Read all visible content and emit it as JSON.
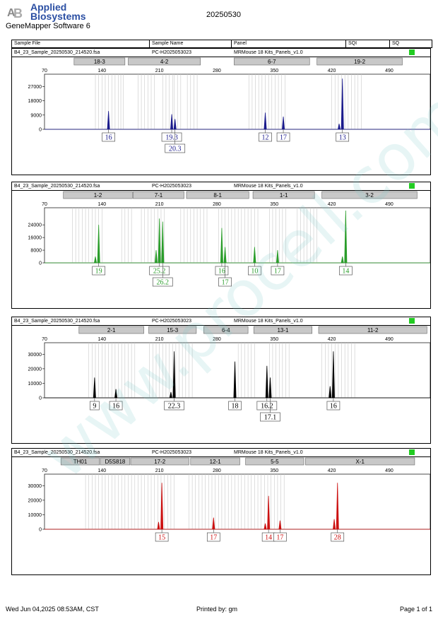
{
  "header": {
    "logo_line1": "Applied",
    "logo_line2": "Biosystems",
    "software": "GeneMapper Software 6",
    "run_id": "20250530"
  },
  "table_header": {
    "sample_file": "Sample File",
    "sample_name": "Sample Name",
    "panel": "Panel",
    "sqi": "SQI",
    "sq": "SQ"
  },
  "colors": {
    "blue": "#1a1a8c",
    "green": "#2a9d2a",
    "black": "#000000",
    "red": "#cc1111",
    "bin_line": "#c8c8c8",
    "marker_fill": "#c8c8c8",
    "sq_ok": "#22cc22"
  },
  "footer": {
    "date": "Wed Jun 04,2025 08:53AM, CST",
    "printed": "Printed by: gm",
    "page": "Page 1 of 1"
  },
  "watermark": "www.procell.com.cn",
  "chart_data": [
    {
      "type": "line",
      "channel": "blue",
      "sample_file": "B4_23_Sample_20250530_214520.fsa",
      "sample_name": "PC-H2025053023",
      "panel": "MRMouse 18 Kits_Panels_v1.0",
      "x_ticks": [
        "70",
        "140",
        "210",
        "280",
        "350",
        "420",
        "490"
      ],
      "xlim": [
        70,
        540
      ],
      "y_ticks": [
        "0",
        "9000",
        "18000",
        "27000"
      ],
      "ylim": [
        0,
        33000
      ],
      "markers": [
        {
          "name": "18-3",
          "start": 106,
          "end": 168
        },
        {
          "name": "4-2",
          "start": 172,
          "end": 260
        },
        {
          "name": "6-7",
          "start": 301,
          "end": 393
        },
        {
          "name": "19-2",
          "start": 402,
          "end": 506
        }
      ],
      "bins": [
        132,
        136,
        140,
        144,
        148,
        152,
        156,
        160,
        163,
        166,
        184,
        188,
        192,
        196,
        200,
        204,
        214,
        218,
        222,
        226,
        228,
        232,
        236,
        244,
        248,
        252,
        256,
        319,
        323,
        327,
        331,
        335,
        339,
        343,
        347,
        351,
        355,
        359,
        363,
        420,
        424,
        428,
        432,
        436,
        440,
        444,
        448,
        452,
        456
      ],
      "peaks": [
        {
          "x": 148,
          "y": 11500,
          "label": "16"
        },
        {
          "x": 225,
          "y": 9500,
          "label": "19.3"
        },
        {
          "x": 229,
          "y": 6500,
          "label": "20.3"
        },
        {
          "x": 339,
          "y": 10500,
          "label": "12"
        },
        {
          "x": 361,
          "y": 8000,
          "label": "17"
        },
        {
          "x": 429,
          "y": 3500,
          "label": ""
        },
        {
          "x": 433,
          "y": 32000,
          "label": "13"
        }
      ],
      "allele_labels": [
        {
          "text": "16",
          "x": 148,
          "row": 0
        },
        {
          "text": "19.3",
          "x": 225,
          "row": 0
        },
        {
          "text": "20.3",
          "x": 229,
          "row": 1
        },
        {
          "text": "12",
          "x": 339,
          "row": 0
        },
        {
          "text": "17",
          "x": 361,
          "row": 0
        },
        {
          "text": "13",
          "x": 433,
          "row": 0
        }
      ]
    },
    {
      "type": "line",
      "channel": "green",
      "sample_file": "B4_23_Sample_20250530_214520.fsa",
      "sample_name": "PC-H2025053023",
      "panel": "MRMouse 18 Kits_Panels_v1.0",
      "x_ticks": [
        "70",
        "140",
        "210",
        "280",
        "350",
        "420",
        "490"
      ],
      "xlim": [
        70,
        540
      ],
      "y_ticks": [
        "0",
        "8000",
        "16000",
        "24000"
      ],
      "ylim": [
        0,
        33000
      ],
      "markers": [
        {
          "name": "1-2",
          "start": 93,
          "end": 177
        },
        {
          "name": "7-1",
          "start": 178,
          "end": 240
        },
        {
          "name": "8-1",
          "start": 243,
          "end": 319
        },
        {
          "name": "1-1",
          "start": 324,
          "end": 399
        },
        {
          "name": "3-2",
          "start": 408,
          "end": 524
        }
      ],
      "bins": [
        104,
        108,
        112,
        116,
        120,
        124,
        128,
        132,
        136,
        140,
        164,
        168,
        172,
        176,
        188,
        192,
        196,
        200,
        204,
        208,
        212,
        216,
        236,
        240,
        244,
        248,
        252,
        256,
        260,
        264,
        268,
        282,
        286,
        290,
        294,
        298,
        302,
        306,
        310,
        314,
        318,
        322,
        326,
        330,
        344,
        348,
        352,
        356,
        360,
        364,
        378,
        382,
        386,
        390,
        394,
        398,
        402
      ],
      "peaks": [
        {
          "x": 132,
          "y": 4000,
          "label": ""
        },
        {
          "x": 136,
          "y": 24000,
          "label": "19"
        },
        {
          "x": 206,
          "y": 8000,
          "label": ""
        },
        {
          "x": 210,
          "y": 28000,
          "label": "25.2"
        },
        {
          "x": 214,
          "y": 26000,
          "label": "26.2"
        },
        {
          "x": 286,
          "y": 22000,
          "label": "16"
        },
        {
          "x": 290,
          "y": 10000,
          "label": "17"
        },
        {
          "x": 326,
          "y": 10000,
          "label": "10"
        },
        {
          "x": 354,
          "y": 8000,
          "label": "17"
        },
        {
          "x": 433,
          "y": 4000,
          "label": ""
        },
        {
          "x": 437,
          "y": 33000,
          "label": "14"
        }
      ],
      "allele_labels": [
        {
          "text": "19",
          "x": 136,
          "row": 0
        },
        {
          "text": "25.2",
          "x": 210,
          "row": 0
        },
        {
          "text": "26.2",
          "x": 214,
          "row": 1
        },
        {
          "text": "16",
          "x": 286,
          "row": 0
        },
        {
          "text": "17",
          "x": 290,
          "row": 1
        },
        {
          "text": "10",
          "x": 326,
          "row": 0
        },
        {
          "text": "17",
          "x": 354,
          "row": 0
        },
        {
          "text": "14",
          "x": 437,
          "row": 0
        }
      ]
    },
    {
      "type": "line",
      "channel": "black",
      "sample_file": "B4_23_Sample_20250530_214520.fsa",
      "sample_name": "PC-H2025053023",
      "panel": "MRMouse 18 Kits_Panels_v1.0",
      "x_ticks": [
        "70",
        "140",
        "210",
        "280",
        "350",
        "420",
        "490"
      ],
      "xlim": [
        70,
        540
      ],
      "y_ticks": [
        "0",
        "10000",
        "20000",
        "30000"
      ],
      "ylim": [
        0,
        36000
      ],
      "markers": [
        {
          "name": "2-1",
          "start": 112,
          "end": 191
        },
        {
          "name": "15-3",
          "start": 197,
          "end": 255
        },
        {
          "name": "6-4",
          "start": 264,
          "end": 318
        },
        {
          "name": "13-1",
          "start": 325,
          "end": 396
        },
        {
          "name": "11-2",
          "start": 404,
          "end": 536
        }
      ],
      "bins": [
        124,
        128,
        132,
        136,
        140,
        144,
        148,
        152,
        156,
        160,
        164,
        168,
        172,
        176,
        180,
        198,
        202,
        206,
        210,
        214,
        218,
        222,
        226,
        230,
        234,
        238,
        242,
        246,
        250,
        306,
        310,
        314,
        318,
        322,
        326,
        344,
        348,
        352,
        356,
        360,
        364,
        368,
        408,
        412,
        416,
        420,
        424,
        428,
        432,
        436,
        440,
        444,
        448
      ],
      "peaks": [
        {
          "x": 131,
          "y": 14000,
          "label": "9"
        },
        {
          "x": 157,
          "y": 6000,
          "label": "16"
        },
        {
          "x": 224,
          "y": 4000,
          "label": ""
        },
        {
          "x": 228,
          "y": 32000,
          "label": "22.3"
        },
        {
          "x": 302,
          "y": 25000,
          "label": "18"
        },
        {
          "x": 341,
          "y": 22000,
          "label": "16.2"
        },
        {
          "x": 345,
          "y": 14000,
          "label": "17.1"
        },
        {
          "x": 418,
          "y": 8000,
          "label": ""
        },
        {
          "x": 422,
          "y": 32000,
          "label": "16"
        }
      ],
      "allele_labels": [
        {
          "text": "9",
          "x": 131,
          "row": 0
        },
        {
          "text": "16",
          "x": 157,
          "row": 0
        },
        {
          "text": "22.3",
          "x": 228,
          "row": 0
        },
        {
          "text": "18",
          "x": 302,
          "row": 0
        },
        {
          "text": "16.2",
          "x": 341,
          "row": 0
        },
        {
          "text": "17.1",
          "x": 345,
          "row": 1
        },
        {
          "text": "16",
          "x": 422,
          "row": 0
        }
      ]
    },
    {
      "type": "line",
      "channel": "red",
      "sample_file": "B4_23_Sample_20250530_214520.fsa",
      "sample_name": "PC-H2025053023",
      "panel": "MRMouse 18 Kits_Panels_v1.0",
      "x_ticks": [
        "70",
        "140",
        "210",
        "280",
        "350",
        "420",
        "490"
      ],
      "xlim": [
        70,
        540
      ],
      "y_ticks": [
        "0",
        "10000",
        "20000",
        "30000"
      ],
      "ylim": [
        0,
        36000
      ],
      "markers": [
        {
          "name": "TH01",
          "start": 90,
          "end": 137
        },
        {
          "name": "D5S818",
          "start": 138,
          "end": 174
        },
        {
          "name": "17-2",
          "start": 175,
          "end": 246
        },
        {
          "name": "12-1",
          "start": 248,
          "end": 308
        },
        {
          "name": "5-5",
          "start": 315,
          "end": 386
        },
        {
          "name": "X-1",
          "start": 388,
          "end": 521
        }
      ],
      "bins": [
        120,
        124,
        128,
        132,
        136,
        140,
        144,
        148,
        152,
        156,
        160,
        164,
        168,
        172,
        176,
        180,
        184,
        188,
        192,
        196,
        200,
        204,
        208,
        212,
        216,
        220,
        224,
        228,
        246,
        250,
        254,
        258,
        262,
        266,
        270,
        274,
        278,
        282,
        286,
        290,
        294,
        298,
        302,
        306,
        310,
        314,
        318,
        322,
        326,
        330,
        334,
        338,
        342,
        346,
        350,
        354,
        358,
        362
      ],
      "peaks": [
        {
          "x": 209,
          "y": 5000,
          "label": ""
        },
        {
          "x": 213,
          "y": 32000,
          "label": "15"
        },
        {
          "x": 276,
          "y": 8000,
          "label": "17"
        },
        {
          "x": 339,
          "y": 4000,
          "label": ""
        },
        {
          "x": 343,
          "y": 23000,
          "label": "14"
        },
        {
          "x": 357,
          "y": 6000,
          "label": "17"
        },
        {
          "x": 423,
          "y": 7000,
          "label": ""
        },
        {
          "x": 427,
          "y": 32000,
          "label": "28"
        }
      ],
      "allele_labels": [
        {
          "text": "15",
          "x": 213,
          "row": 0
        },
        {
          "text": "17",
          "x": 276,
          "row": 0
        },
        {
          "text": "14",
          "x": 343,
          "row": 0
        },
        {
          "text": "17",
          "x": 357,
          "row": 0
        },
        {
          "text": "28",
          "x": 427,
          "row": 0
        }
      ]
    }
  ]
}
